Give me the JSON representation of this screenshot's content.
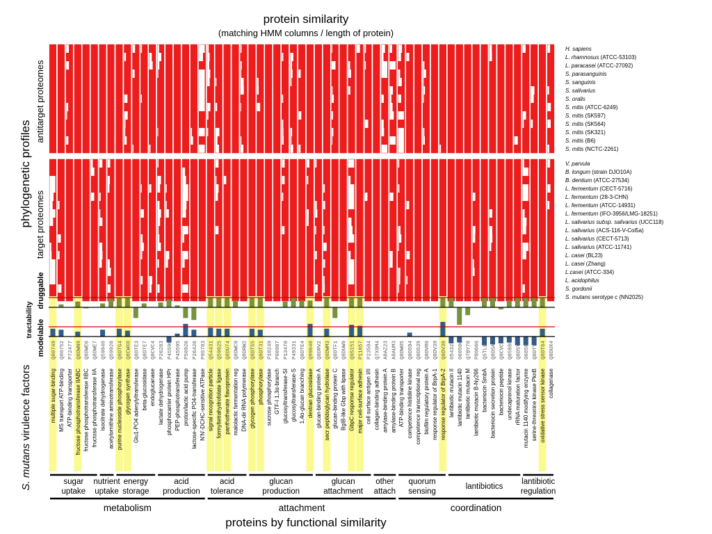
{
  "titles": {
    "main": "protein similarity",
    "subtitle": "(matching HMM columns / length of protein)",
    "bottom": "proteins by functional similarity"
  },
  "side_labels": {
    "phylogenetic": "phylogenetic profiles",
    "antitarget": "antitarget proteomes",
    "target": "target proteomes",
    "druggable": "druggable",
    "tractability": "tractability",
    "modelable": "modelable",
    "virulence_italic": "S. mutans",
    "virulence_rest": " virulence factors"
  },
  "colors": {
    "cell": "#ee1c1c",
    "cell_edge": "#c41010",
    "druggable_bar": "#76923c",
    "modelable_bar": "#2f5b8e",
    "highlight": "#fbfa8e",
    "threshold_line": "#cc0000"
  },
  "antitarget_organisms": [
    {
      "italic": "H. sapiens",
      "rest": ""
    },
    {
      "italic": "L. rhamnosus",
      "rest": " (ATCC-53103)"
    },
    {
      "italic": "L. paracasei",
      "rest": " (ATCC-27092)"
    },
    {
      "italic": "S. parasanguinis",
      "rest": ""
    },
    {
      "italic": "S. sanguinis",
      "rest": ""
    },
    {
      "italic": "S. salivarius",
      "rest": ""
    },
    {
      "italic": "S. oralis",
      "rest": ""
    },
    {
      "italic": "S. mitis",
      "rest": " (ATCC-6249)"
    },
    {
      "italic": "S. mitis",
      "rest": " (SK597)"
    },
    {
      "italic": "S. mitis",
      "rest": " (SK564)"
    },
    {
      "italic": "S. mitis",
      "rest": " (SK321)"
    },
    {
      "italic": "S. mitis",
      "rest": " (B6)"
    },
    {
      "italic": "S. mitis",
      "rest": " (NCTC-2261)"
    }
  ],
  "target_organisms": [
    {
      "italic": "V. parvula",
      "rest": ""
    },
    {
      "italic": "B. longum",
      "rest": " (strain DJO10A)"
    },
    {
      "italic": "B. dentium",
      "rest": " (ATCC-27534)"
    },
    {
      "italic": "L. fermentum",
      "rest": " (CECT-5716)"
    },
    {
      "italic": "L. fermentum",
      "rest": " (28-3-CHN)"
    },
    {
      "italic": "L. fermentum",
      "rest": " (ATCC-14931)"
    },
    {
      "italic": "L. fermentum",
      "rest": " (IFO-3956/LMG-18251)"
    },
    {
      "italic": "L. salivarius subsp. salivarius",
      "rest": " (UCC118)"
    },
    {
      "italic": "L. salivarius",
      "rest": " (ACS-116-V-Col5a)"
    },
    {
      "italic": "L. salivarius",
      "rest": " (CECT-5713)"
    },
    {
      "italic": "L. salivarius",
      "rest": " (ATCC-11741)"
    },
    {
      "italic": "L. casei",
      "rest": " (BL23)"
    },
    {
      "italic": "L. casei",
      "rest": " (Zhang)"
    },
    {
      "italic": "L.casei",
      "rest": " (ATCC-334)"
    },
    {
      "italic": "L. acidophilus",
      "rest": ""
    },
    {
      "italic": "S. gordonii",
      "rest": ""
    },
    {
      "italic": "S. mutans",
      "rest": " serotype c (NN2025)"
    }
  ],
  "proteins": [
    {
      "name": "multiple sugar-binding",
      "acc": "Q00749",
      "hl": true,
      "drug": 0,
      "model": 0.8
    },
    {
      "name": "MS transport ATP-binding",
      "acc": "Q00752",
      "hl": false,
      "drug": 0.3,
      "model": 0.7
    },
    {
      "name": "ATP-binding transporter",
      "acc": "P72477",
      "hl": false,
      "drug": 0,
      "model": 0
    },
    {
      "name": "fructose phosphotransferase IIABC",
      "acc": "Q8DWN9",
      "hl": true,
      "drug": 0.6,
      "model": 0.5
    },
    {
      "name": "fructose phosphotransferase IIBC",
      "acc": "Q8DWE6",
      "hl": false,
      "drug": -0.1,
      "model": 0
    },
    {
      "name": "fructose phosphotransferase IIA",
      "acc": "Q8DWE7",
      "hl": false,
      "drug": 0,
      "model": 0
    },
    {
      "name": "isocitrate dehydrogenase",
      "acc": "Q59940",
      "hl": false,
      "drug": 0.4,
      "model": 0.7
    },
    {
      "name": "acetylornithine aminotransferase",
      "acc": "Q59928",
      "hl": false,
      "drug": 0.9,
      "model": 0
    },
    {
      "name": "purine nucleoside phosphorylase",
      "acc": "Q8DTG4",
      "hl": true,
      "drug": 1,
      "model": 0.8
    },
    {
      "name": "glycogen synthase",
      "acc": "Q8CWX0",
      "hl": true,
      "drug": 1,
      "model": 0.6
    },
    {
      "name": "Glu1-PO4 adenylyltransferase",
      "acc": "Q8DTE3",
      "hl": false,
      "drug": -1.1,
      "model": 0
    },
    {
      "name": "beta-glucosidase",
      "acc": "Q8DTE7",
      "hl": false,
      "drug": 0.4,
      "model": 0
    },
    {
      "name": "endoglucanase",
      "acc": "Q8CVC4",
      "hl": false,
      "drug": 0,
      "model": 0
    },
    {
      "name": "lactate dehydrogenase",
      "acc": "P26283",
      "hl": false,
      "drug": 0.5,
      "model": 0
    },
    {
      "name": "phosphocarrier protein HPr",
      "acc": "P45596",
      "hl": false,
      "drug": 0.8,
      "model": -0.6
    },
    {
      "name": "PEP-phosphotransferase",
      "acc": "P45595",
      "hl": false,
      "drug": 0.2,
      "model": 0.3
    },
    {
      "name": "proton/lactic acid pump",
      "acc": "P50926",
      "hl": false,
      "drug": -1.1,
      "model": 1.3
    },
    {
      "name": "lactose-specific PO4-transferase",
      "acc": "P26426",
      "hl": false,
      "drug": -1.3,
      "model": 0.7
    },
    {
      "name": "N'N'-DCHC-sensitive ATPase",
      "acc": "P95783",
      "hl": false,
      "drug": 0,
      "model": 0
    },
    {
      "name": "signal recognition particle",
      "acc": "Q54431",
      "hl": true,
      "drug": 1,
      "model": 0.9
    },
    {
      "name": "formyltetrahydrofolate ligase",
      "acc": "Q59925",
      "hl": true,
      "drug": 1,
      "model": 0.8
    },
    {
      "name": "panthothenate flavoprotein",
      "acc": "Q8DU74",
      "hl": true,
      "drug": 1,
      "model": 0.8
    },
    {
      "name": "malolactic fermentation reg",
      "acc": "Q8DWC9",
      "hl": false,
      "drug": 0.7,
      "model": 0
    },
    {
      "name": "DNA-dir RNA polymerase",
      "acc": "Q8DRW2",
      "hl": false,
      "drug": 0,
      "model": 0
    },
    {
      "name": "glycogen phosphorylase",
      "acc": "Q8DT55",
      "hl": true,
      "drug": 1,
      "model": 0.8
    },
    {
      "name": "phosphorylase",
      "acc": "Q8DT31",
      "hl": true,
      "drug": 1,
      "model": 0.7
    },
    {
      "name": "sucrose phosphorylase",
      "acc": "P10249",
      "hl": false,
      "drug": 0,
      "model": 0
    },
    {
      "name": "GTF-I 1,3α-branch",
      "acc": "P08987",
      "hl": false,
      "drug": 0,
      "model": 0
    },
    {
      "name": "glucosyltransferase-SI",
      "acc": "P13470",
      "hl": false,
      "drug": 0.6,
      "model": 0
    },
    {
      "name": "glucosyltransferase-S",
      "acc": "P49331",
      "hl": false,
      "drug": 1,
      "model": 0
    },
    {
      "name": "1,4α-glucan branching",
      "acc": "Q8DTE4",
      "hl": false,
      "drug": 0.7,
      "model": 0
    },
    {
      "name": "dextran glucosidase",
      "acc": "Q99040",
      "hl": true,
      "drug": 0.7,
      "model": 1.3
    },
    {
      "name": "glucan-binding protein A",
      "acc": "Q8DRV2",
      "hl": false,
      "drug": 0,
      "model": 0
    },
    {
      "name": "secr peptidoglycan hydrolase",
      "acc": "Q8DWM3",
      "hl": true,
      "drug": 1,
      "model": 0.8
    },
    {
      "name": "glucan-binding protein C",
      "acc": "Q8DTF1",
      "hl": false,
      "drug": -1.1,
      "model": 0
    },
    {
      "name": "BgIB-like Gbp with lipase",
      "acc": "Q8DUW9",
      "hl": false,
      "drug": 0,
      "model": 0
    },
    {
      "name": "GbpC response regulator",
      "acc": "Q9S151",
      "hl": true,
      "drug": 1,
      "model": 1.2
    },
    {
      "name": "major cell-surface adhesin",
      "acc": "P11657",
      "hl": true,
      "drug": 1,
      "model": 1.1
    },
    {
      "name": "cell surface antigen I/II",
      "acc": "P23504",
      "hl": false,
      "drug": 0,
      "model": 0
    },
    {
      "name": "collagen-binding adhesin",
      "acc": "Q7X9M4",
      "hl": false,
      "drug": 0,
      "model": 0
    },
    {
      "name": "amylase-binding protein A",
      "acc": "A8AZ23",
      "hl": false,
      "drug": 0,
      "model": 0
    },
    {
      "name": "amylase-binding protein B",
      "acc": "A8AUM3",
      "hl": false,
      "drug": 0,
      "model": 0
    },
    {
      "name": "ATP-binding transporter",
      "acc": "Q8DW05",
      "hl": false,
      "drug": 0,
      "model": 0
    },
    {
      "name": "competence histidine kinase",
      "acc": "Q8DS94",
      "hl": false,
      "drug": 0,
      "model": 0.4
    },
    {
      "name": "competence transcriptional reg",
      "acc": "Q8DS39",
      "hl": false,
      "drug": 0,
      "model": 0
    },
    {
      "name": "biofilm regulatory protein A",
      "acc": "Q8DVR0",
      "hl": false,
      "drug": 0,
      "model": 0
    },
    {
      "name": "response regulator of BrpA-1",
      "acc": "Q8DV39",
      "hl": false,
      "drug": 0,
      "model": 0
    },
    {
      "name": "response regulator of BrpA-2",
      "acc": "Q8DV38",
      "hl": true,
      "drug": 1,
      "model": 1.5
    },
    {
      "name": "lantibiotic mutacin II",
      "acc": "O54329",
      "hl": false,
      "drug": 1,
      "model": -0.7
    },
    {
      "name": "lantibiotic mutacin 1140",
      "acc": "O68586",
      "hl": false,
      "drug": -1.8,
      "model": -0.6
    },
    {
      "name": "lantibiotic mutacin M",
      "acc": "Q7BY70",
      "hl": false,
      "drug": -0.8,
      "model": 0
    },
    {
      "name": "lantibiotic mutacin B-Ny266",
      "acc": "P80666",
      "hl": false,
      "drug": 0,
      "model": 0
    },
    {
      "name": "bacteriocin SmbA",
      "acc": "Q5TLL1",
      "hl": false,
      "drug": 1,
      "model": -0.9
    },
    {
      "name": "bacteriocin secretion protein",
      "acc": "Q8DSA3",
      "hl": false,
      "drug": 1,
      "model": -0.8
    },
    {
      "name": "bacteriocin peptide",
      "acc": "Q8CVC8",
      "hl": false,
      "drug": -0.2,
      "model": -0.7
    },
    {
      "name": "undecaprenol kinase",
      "acc": "Q05888",
      "hl": false,
      "drug": 0.7,
      "model": -0.6
    },
    {
      "name": "rRNA maturation factor",
      "acc": "Q8DSY7",
      "hl": false,
      "drug": 1,
      "model": -0.9
    },
    {
      "name": "mutacin 1140 modifying enzyme",
      "acc": "O68588",
      "hl": false,
      "drug": 1,
      "model": -0.9
    },
    {
      "name": "serine-threonine kinase PknB",
      "acc": "Q8DTY8",
      "hl": false,
      "drug": 1,
      "model": -0.9
    },
    {
      "name": "oxidative stress sensor kinase",
      "acc": "Q8DT64",
      "hl": true,
      "drug": 1,
      "model": 0.8
    },
    {
      "name": "collagenase",
      "acc": "Q8DUX4",
      "hl": false,
      "drug": 0,
      "model": 0
    }
  ],
  "groups": [
    {
      "lines": [
        "sugar",
        "uptake"
      ],
      "start": 0,
      "end": 5
    },
    {
      "lines": [
        "nutrient",
        "uptake"
      ],
      "start": 6,
      "end": 7
    },
    {
      "lines": [
        "energy",
        "storage"
      ],
      "start": 8,
      "end": 12
    },
    {
      "lines": [
        "acid",
        "production"
      ],
      "start": 13,
      "end": 18
    },
    {
      "lines": [
        "acid",
        "tolerance"
      ],
      "start": 19,
      "end": 23
    },
    {
      "lines": [
        "glucan",
        "production"
      ],
      "start": 24,
      "end": 31
    },
    {
      "lines": [
        "glucan",
        "attachment"
      ],
      "start": 32,
      "end": 38
    },
    {
      "lines": [
        "other",
        "attach"
      ],
      "start": 39,
      "end": 41
    },
    {
      "lines": [
        "quorum",
        "sensing"
      ],
      "start": 42,
      "end": 47
    },
    {
      "lines": [
        "lantibiotics"
      ],
      "start": 48,
      "end": 56
    },
    {
      "lines": [
        "lantibiotic",
        "regulation"
      ],
      "start": 57,
      "end": 60
    }
  ],
  "categories": [
    {
      "label": "metabolism",
      "start": 0,
      "end": 18
    },
    {
      "label": "attachment",
      "start": 19,
      "end": 41
    },
    {
      "label": "coordination",
      "start": 42,
      "end": 60
    }
  ]
}
